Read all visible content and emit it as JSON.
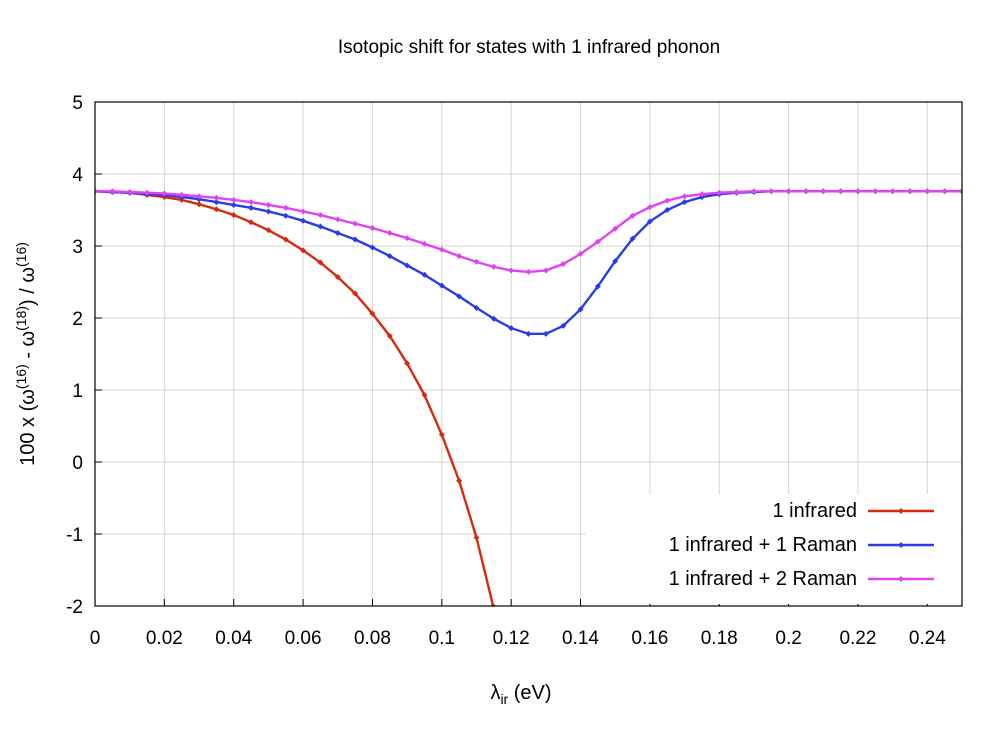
{
  "chart_data": {
    "type": "line",
    "title": "Isotopic shift for states with 1 infrared phonon",
    "xlabel": {
      "main": "λ",
      "sub": "ir",
      "rest": " (eV)"
    },
    "ylabel": {
      "prefix": "100 x (ω",
      "sup1": "(16)",
      "mid": " - ω",
      "sup2": "(18)",
      "mid2": ") / ω",
      "sup3": "(16)"
    },
    "xlim": [
      0,
      0.25
    ],
    "ylim": [
      -2,
      5
    ],
    "xticks": [
      "0",
      "0.02",
      "0.04",
      "0.06",
      "0.08",
      "0.1",
      "0.12",
      "0.14",
      "0.16",
      "0.18",
      "0.2",
      "0.22",
      "0.24"
    ],
    "yticks": [
      "-2",
      "-1",
      "0",
      "1",
      "2",
      "3",
      "4",
      "5"
    ],
    "grid": true,
    "legend_position": "bottom-right",
    "series": [
      {
        "name": "1 infrared",
        "color": "#d62a0c",
        "points": [
          [
            0,
            3.76
          ],
          [
            0.005,
            3.75
          ],
          [
            0.01,
            3.74
          ],
          [
            0.015,
            3.71
          ],
          [
            0.02,
            3.68
          ],
          [
            0.025,
            3.64
          ],
          [
            0.03,
            3.58
          ],
          [
            0.035,
            3.51
          ],
          [
            0.04,
            3.43
          ],
          [
            0.045,
            3.33
          ],
          [
            0.05,
            3.22
          ],
          [
            0.055,
            3.09
          ],
          [
            0.06,
            2.94
          ],
          [
            0.065,
            2.77
          ],
          [
            0.07,
            2.57
          ],
          [
            0.075,
            2.34
          ],
          [
            0.08,
            2.06
          ],
          [
            0.085,
            1.75
          ],
          [
            0.09,
            1.37
          ],
          [
            0.095,
            0.93
          ],
          [
            0.1,
            0.38
          ],
          [
            0.105,
            -0.26
          ],
          [
            0.11,
            -1.05
          ],
          [
            0.1148,
            -2.0
          ]
        ]
      },
      {
        "name": "1 infrared + 1 Raman",
        "color": "#2a3ce6",
        "points": [
          [
            0,
            3.76
          ],
          [
            0.005,
            3.75
          ],
          [
            0.01,
            3.74
          ],
          [
            0.015,
            3.72
          ],
          [
            0.02,
            3.71
          ],
          [
            0.025,
            3.68
          ],
          [
            0.03,
            3.65
          ],
          [
            0.035,
            3.61
          ],
          [
            0.04,
            3.57
          ],
          [
            0.045,
            3.53
          ],
          [
            0.05,
            3.48
          ],
          [
            0.055,
            3.42
          ],
          [
            0.06,
            3.35
          ],
          [
            0.065,
            3.27
          ],
          [
            0.07,
            3.18
          ],
          [
            0.075,
            3.09
          ],
          [
            0.08,
            2.98
          ],
          [
            0.085,
            2.86
          ],
          [
            0.09,
            2.73
          ],
          [
            0.095,
            2.6
          ],
          [
            0.1,
            2.45
          ],
          [
            0.105,
            2.3
          ],
          [
            0.11,
            2.14
          ],
          [
            0.115,
            1.99
          ],
          [
            0.12,
            1.86
          ],
          [
            0.125,
            1.78
          ],
          [
            0.13,
            1.78
          ],
          [
            0.135,
            1.89
          ],
          [
            0.14,
            2.12
          ],
          [
            0.145,
            2.44
          ],
          [
            0.15,
            2.79
          ],
          [
            0.155,
            3.1
          ],
          [
            0.16,
            3.34
          ],
          [
            0.165,
            3.5
          ],
          [
            0.17,
            3.61
          ],
          [
            0.175,
            3.68
          ],
          [
            0.18,
            3.72
          ],
          [
            0.185,
            3.74
          ],
          [
            0.19,
            3.75
          ],
          [
            0.195,
            3.76
          ],
          [
            0.2,
            3.76
          ],
          [
            0.205,
            3.76
          ],
          [
            0.21,
            3.76
          ],
          [
            0.215,
            3.76
          ],
          [
            0.22,
            3.76
          ],
          [
            0.225,
            3.76
          ],
          [
            0.23,
            3.76
          ],
          [
            0.235,
            3.76
          ],
          [
            0.24,
            3.76
          ],
          [
            0.245,
            3.76
          ],
          [
            0.25,
            3.76
          ]
        ]
      },
      {
        "name": "1 infrared + 2 Raman",
        "color": "#e043f0",
        "points": [
          [
            0,
            3.76
          ],
          [
            0.005,
            3.76
          ],
          [
            0.01,
            3.75
          ],
          [
            0.015,
            3.74
          ],
          [
            0.02,
            3.73
          ],
          [
            0.025,
            3.71
          ],
          [
            0.03,
            3.69
          ],
          [
            0.035,
            3.67
          ],
          [
            0.04,
            3.64
          ],
          [
            0.045,
            3.61
          ],
          [
            0.05,
            3.57
          ],
          [
            0.055,
            3.53
          ],
          [
            0.06,
            3.48
          ],
          [
            0.065,
            3.43
          ],
          [
            0.07,
            3.37
          ],
          [
            0.075,
            3.31
          ],
          [
            0.08,
            3.25
          ],
          [
            0.085,
            3.18
          ],
          [
            0.09,
            3.11
          ],
          [
            0.095,
            3.03
          ],
          [
            0.1,
            2.95
          ],
          [
            0.105,
            2.86
          ],
          [
            0.11,
            2.78
          ],
          [
            0.115,
            2.71
          ],
          [
            0.12,
            2.66
          ],
          [
            0.125,
            2.64
          ],
          [
            0.13,
            2.66
          ],
          [
            0.135,
            2.75
          ],
          [
            0.14,
            2.89
          ],
          [
            0.145,
            3.06
          ],
          [
            0.15,
            3.24
          ],
          [
            0.155,
            3.42
          ],
          [
            0.16,
            3.54
          ],
          [
            0.165,
            3.63
          ],
          [
            0.17,
            3.69
          ],
          [
            0.175,
            3.72
          ],
          [
            0.18,
            3.74
          ],
          [
            0.185,
            3.75
          ],
          [
            0.19,
            3.76
          ],
          [
            0.195,
            3.76
          ],
          [
            0.2,
            3.76
          ],
          [
            0.205,
            3.76
          ],
          [
            0.21,
            3.76
          ],
          [
            0.215,
            3.76
          ],
          [
            0.22,
            3.76
          ],
          [
            0.225,
            3.76
          ],
          [
            0.23,
            3.76
          ],
          [
            0.235,
            3.76
          ],
          [
            0.24,
            3.76
          ],
          [
            0.245,
            3.76
          ],
          [
            0.25,
            3.76
          ]
        ]
      }
    ]
  }
}
